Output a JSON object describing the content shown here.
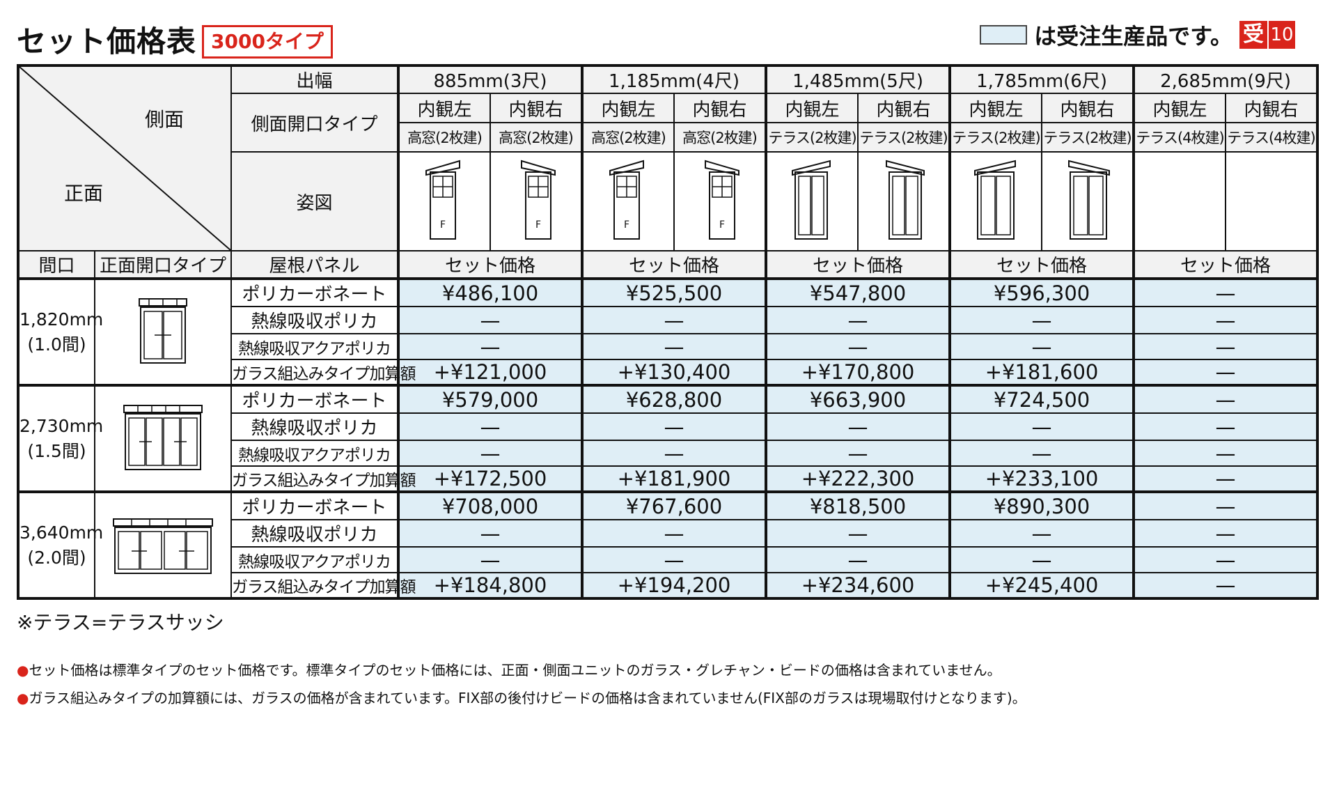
{
  "header": {
    "title": "セット価格表",
    "type_badge": "3000タイプ",
    "legend_text": "は受注生産品です。",
    "legend_badge_char": "受",
    "legend_badge_num": "10"
  },
  "table": {
    "corner_side": "側面",
    "corner_front": "正面",
    "labels": {
      "width": "出幅",
      "side_open_type": "側面開口タイプ",
      "figure": "姿図",
      "frontage": "間口",
      "front_open_type": "正面開口タイプ",
      "roof_panel": "屋根パネル"
    },
    "widths": [
      "885mm(3尺)",
      "1,185mm(4尺)",
      "1,485mm(5尺)",
      "1,785mm(6尺)",
      "2,685mm(9尺)"
    ],
    "sides": [
      "内観左",
      "内観右",
      "内観左",
      "内観右",
      "内観左",
      "内観右",
      "内観左",
      "内観右",
      "内観左",
      "内観右"
    ],
    "side_types": [
      "高窓(2枚建)",
      "高窓(2枚建)",
      "高窓(2枚建)",
      "高窓(2枚建)",
      "テラス(2枚建)",
      "テラス(2枚建)",
      "テラス(2枚建)",
      "テラス(2枚建)",
      "テラス(4枚建)",
      "テラス(4枚建)"
    ],
    "fig_label": "F",
    "set_price_label": "セット価格",
    "roof_types": [
      "ポリカーボネート",
      "熱線吸収ポリカ",
      "熱線吸収アクアポリカ",
      "ガラス組込みタイプ加算額"
    ],
    "groups": [
      {
        "frontage_mm": "1,820mm",
        "frontage_ken": "(1.0間)",
        "rows": [
          [
            "¥486,100",
            "¥525,500",
            "¥547,800",
            "¥596,300",
            "—"
          ],
          [
            "—",
            "—",
            "—",
            "—",
            "—"
          ],
          [
            "—",
            "—",
            "—",
            "—",
            "—"
          ],
          [
            "+¥121,000",
            "+¥130,400",
            "+¥170,800",
            "+¥181,600",
            "—"
          ]
        ]
      },
      {
        "frontage_mm": "2,730mm",
        "frontage_ken": "(1.5間)",
        "rows": [
          [
            "¥579,000",
            "¥628,800",
            "¥663,900",
            "¥724,500",
            "—"
          ],
          [
            "—",
            "—",
            "—",
            "—",
            "—"
          ],
          [
            "—",
            "—",
            "—",
            "—",
            "—"
          ],
          [
            "+¥172,500",
            "+¥181,900",
            "+¥222,300",
            "+¥233,100",
            "—"
          ]
        ]
      },
      {
        "frontage_mm": "3,640mm",
        "frontage_ken": "(2.0間)",
        "rows": [
          [
            "¥708,000",
            "¥767,600",
            "¥818,500",
            "¥890,300",
            "—"
          ],
          [
            "—",
            "—",
            "—",
            "—",
            "—"
          ],
          [
            "—",
            "—",
            "—",
            "—",
            "—"
          ],
          [
            "+¥184,800",
            "+¥194,200",
            "+¥234,600",
            "+¥245,400",
            "—"
          ]
        ]
      }
    ]
  },
  "notes": {
    "terrace_note": "※テラス=テラスサッシ",
    "bullet_mark": "●",
    "bullet1": "セット価格は標準タイプのセット価格です。標準タイプのセット価格には、正面・側面ユニットのガラス・グレチャン・ビードの価格は含まれていません。",
    "bullet2": "ガラス組込みタイプの加算額には、ガラスの価格が含まれています。FIX部の後付けビードの価格は含まれていません(FIX部のガラスは現場取付けとなります)。"
  },
  "colors": {
    "accent_red": "#d9241b",
    "made_to_order_fill": "#dfeef6",
    "header_fill": "#f2f2f2"
  }
}
